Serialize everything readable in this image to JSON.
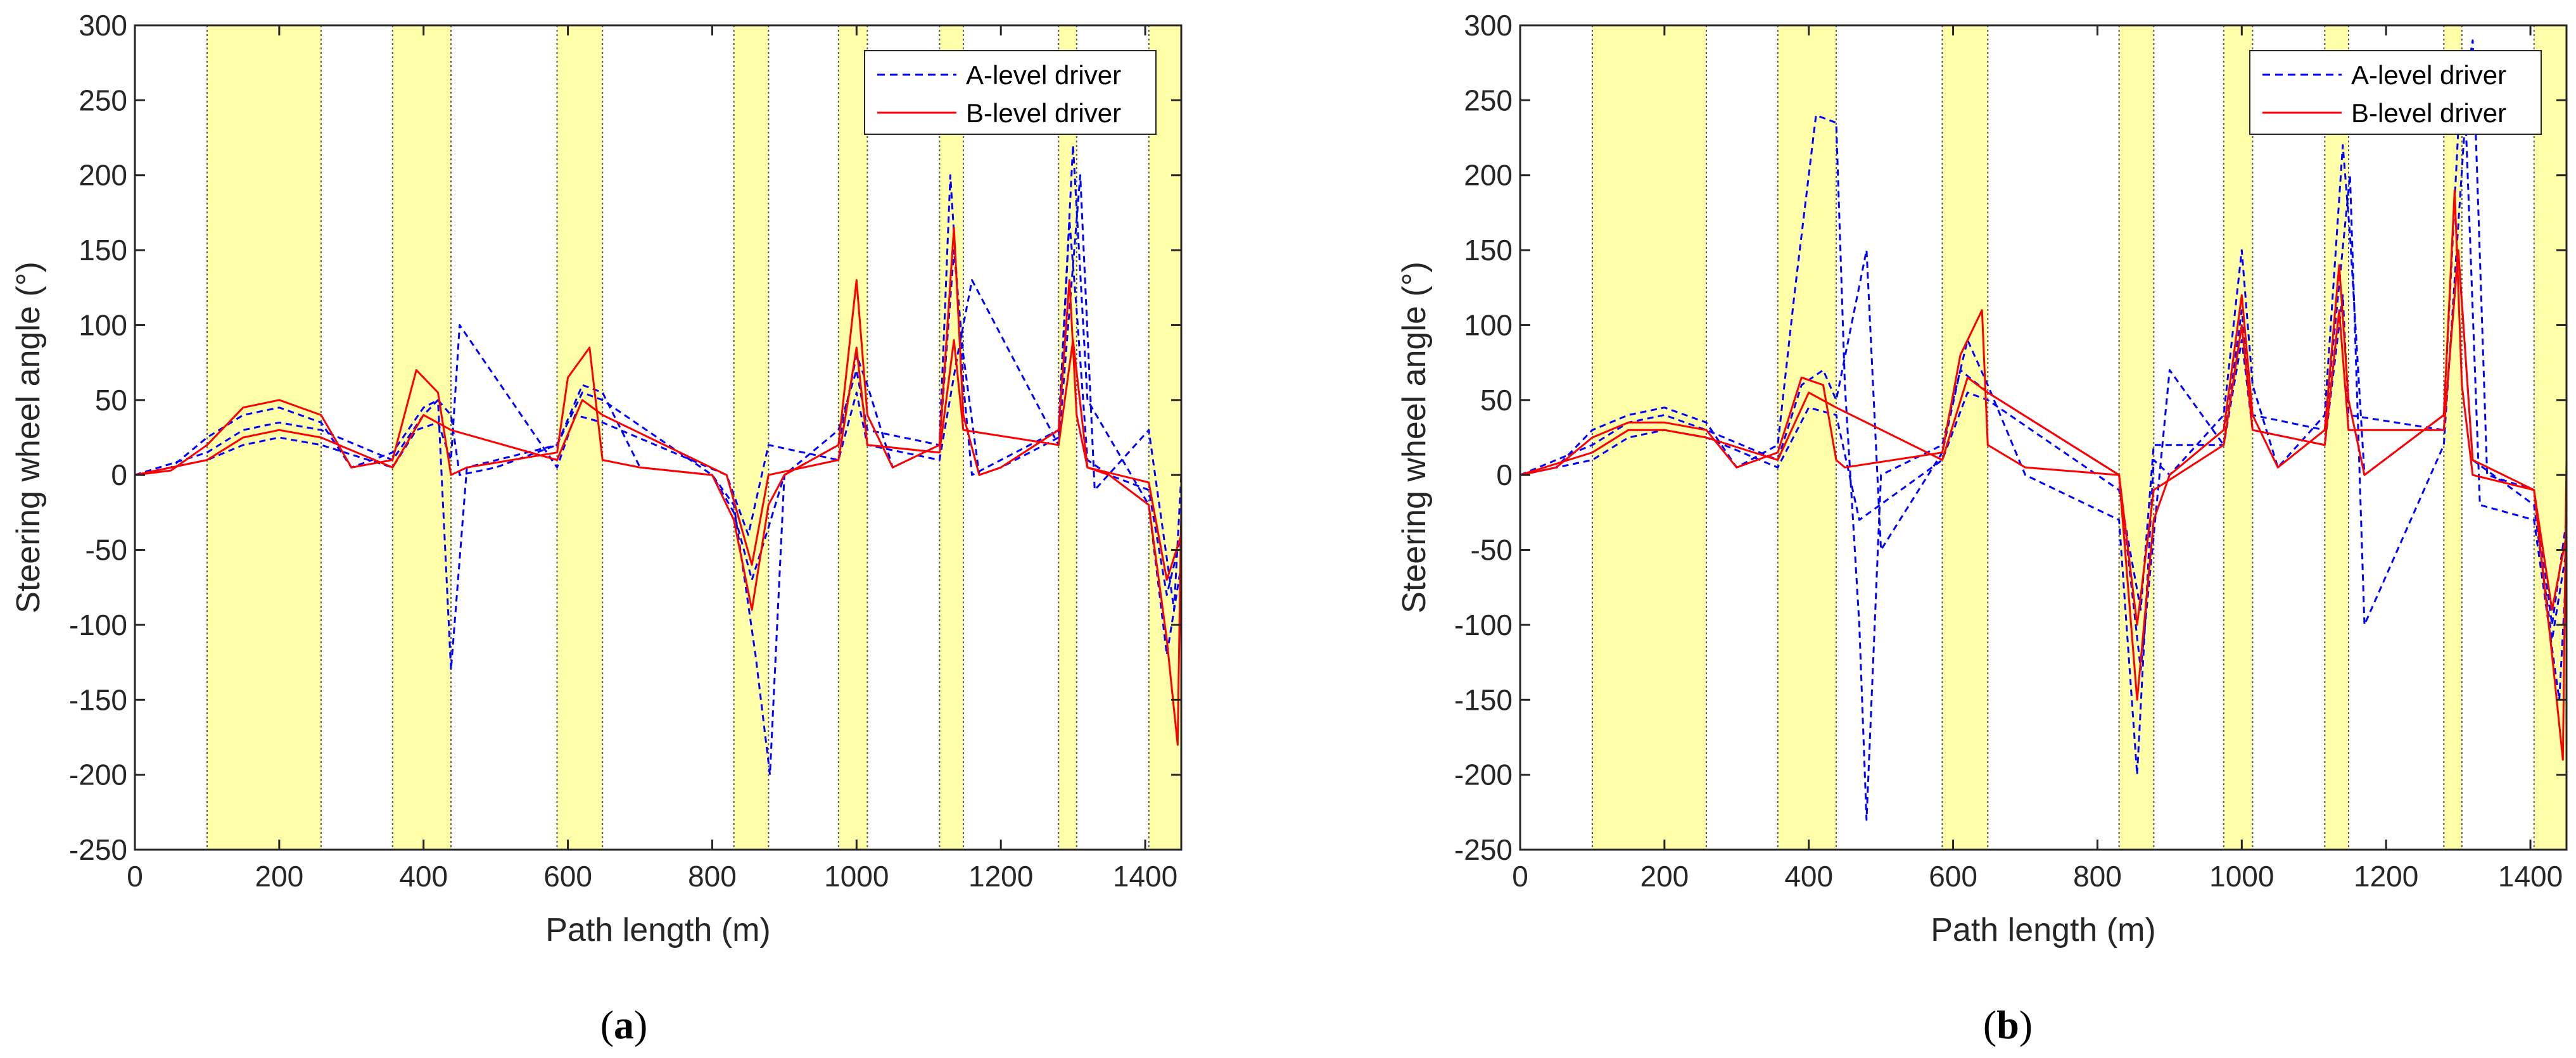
{
  "chart_data": [
    {
      "type": "line",
      "panel_label": "a",
      "xlabel": "Path length (m)",
      "ylabel": "Steering wheel angle (°)",
      "xlim": [
        0,
        1450
      ],
      "ylim": [
        -250,
        300
      ],
      "x_ticks": [
        0,
        200,
        400,
        600,
        800,
        1000,
        1200,
        1400
      ],
      "y_ticks": [
        -250,
        -200,
        -150,
        -100,
        -50,
        0,
        50,
        100,
        150,
        200,
        250,
        300
      ],
      "legend": {
        "position": "top-right",
        "entries": [
          "A-level driver",
          "B-level driver"
        ]
      },
      "shaded_regions": [
        [
          100,
          258
        ],
        [
          357,
          438
        ],
        [
          585,
          648
        ],
        [
          830,
          878
        ],
        [
          975,
          1015
        ],
        [
          1115,
          1148
        ],
        [
          1280,
          1305
        ],
        [
          1405,
          1450
        ]
      ],
      "colors": {
        "A-level driver": "#0000ff",
        "B-level driver": "#ff0000",
        "shade": "#ffffaa"
      },
      "series": [
        {
          "name": "A-level driver",
          "style": "dashed",
          "x": [
            0,
            50,
            100,
            150,
            200,
            258,
            300,
            357,
            400,
            420,
            438,
            450,
            500,
            585,
            620,
            648,
            700,
            800,
            830,
            855,
            878,
            900,
            975,
            1000,
            1015,
            1050,
            1115,
            1135,
            1148,
            1170,
            1200,
            1280,
            1295,
            1305,
            1320,
            1350,
            1405,
            1430,
            1450
          ],
          "values": [
            0,
            5,
            25,
            40,
            45,
            35,
            5,
            15,
            45,
            50,
            40,
            0,
            5,
            20,
            60,
            55,
            5,
            0,
            -25,
            -70,
            -35,
            0,
            20,
            80,
            60,
            5,
            20,
            150,
            80,
            0,
            5,
            25,
            170,
            110,
            10,
            0,
            -10,
            -80,
            -40
          ]
        },
        {
          "name": "A-level driver",
          "style": "dashed",
          "x": [
            0,
            100,
            150,
            200,
            258,
            357,
            400,
            420,
            438,
            460,
            585,
            620,
            648,
            800,
            830,
            860,
            880,
            900,
            975,
            1000,
            1015,
            1115,
            1130,
            1148,
            1160,
            1280,
            1300,
            1320,
            1405,
            1430,
            1450
          ],
          "values": [
            0,
            15,
            30,
            35,
            30,
            10,
            40,
            50,
            -130,
            5,
            20,
            55,
            50,
            0,
            -20,
            -120,
            -200,
            0,
            30,
            70,
            30,
            20,
            200,
            60,
            0,
            30,
            220,
            50,
            -20,
            -120,
            -60
          ]
        },
        {
          "name": "A-level driver",
          "style": "dashed",
          "x": [
            0,
            100,
            150,
            200,
            258,
            357,
            390,
            420,
            438,
            450,
            585,
            610,
            648,
            820,
            850,
            878,
            975,
            1000,
            1015,
            1115,
            1140,
            1160,
            1280,
            1310,
            1330,
            1405,
            1440,
            1450
          ],
          "values": [
            0,
            10,
            20,
            25,
            20,
            5,
            30,
            35,
            10,
            100,
            5,
            40,
            35,
            0,
            -40,
            20,
            10,
            55,
            20,
            10,
            80,
            130,
            20,
            200,
            -10,
            30,
            -90,
            0
          ]
        },
        {
          "name": "B-level driver",
          "style": "solid",
          "x": [
            0,
            50,
            100,
            150,
            200,
            258,
            300,
            357,
            390,
            420,
            438,
            460,
            585,
            600,
            630,
            648,
            700,
            800,
            830,
            855,
            878,
            900,
            975,
            1000,
            1015,
            1050,
            1115,
            1135,
            1148,
            1170,
            1200,
            1280,
            1295,
            1305,
            1320,
            1350,
            1405,
            1430,
            1445,
            1450
          ],
          "values": [
            0,
            3,
            20,
            45,
            50,
            40,
            5,
            10,
            70,
            55,
            0,
            5,
            15,
            65,
            85,
            10,
            5,
            0,
            -30,
            -90,
            -20,
            0,
            20,
            130,
            40,
            5,
            20,
            165,
            40,
            0,
            5,
            30,
            130,
            40,
            5,
            0,
            -20,
            -110,
            -180,
            -20
          ]
        },
        {
          "name": "B-level driver",
          "style": "solid",
          "x": [
            0,
            100,
            150,
            200,
            258,
            357,
            400,
            438,
            585,
            620,
            648,
            820,
            855,
            878,
            975,
            1000,
            1015,
            1115,
            1135,
            1148,
            1280,
            1300,
            1320,
            1405,
            1430,
            1450
          ],
          "values": [
            0,
            10,
            25,
            30,
            25,
            5,
            40,
            30,
            10,
            50,
            40,
            0,
            -60,
            0,
            10,
            85,
            20,
            15,
            90,
            30,
            20,
            90,
            5,
            -5,
            -70,
            -40
          ]
        }
      ]
    },
    {
      "type": "line",
      "panel_label": "b",
      "xlabel": "Path length (m)",
      "ylabel": "Steering wheel angle (°)",
      "xlim": [
        0,
        1450
      ],
      "ylim": [
        -250,
        300
      ],
      "x_ticks": [
        0,
        200,
        400,
        600,
        800,
        1000,
        1200,
        1400
      ],
      "y_ticks": [
        -250,
        -200,
        -150,
        -100,
        -50,
        0,
        50,
        100,
        150,
        200,
        250,
        300
      ],
      "legend": {
        "position": "top-right",
        "entries": [
          "A-level driver",
          "B-level driver"
        ]
      },
      "shaded_regions": [
        [
          100,
          258
        ],
        [
          357,
          438
        ],
        [
          585,
          648
        ],
        [
          830,
          878
        ],
        [
          975,
          1015
        ],
        [
          1115,
          1148
        ],
        [
          1280,
          1305
        ],
        [
          1405,
          1450
        ]
      ],
      "colors": {
        "A-level driver": "#0000ff",
        "B-level driver": "#ff0000",
        "shade": "#ffffaa"
      },
      "series": [
        {
          "name": "A-level driver",
          "style": "dashed",
          "x": [
            0,
            50,
            100,
            150,
            200,
            258,
            300,
            357,
            380,
            410,
            438,
            450,
            470,
            480,
            500,
            585,
            620,
            648,
            700,
            830,
            855,
            878,
            900,
            975,
            1000,
            1015,
            1050,
            1115,
            1140,
            1150,
            1170,
            1280,
            1300,
            1320,
            1340,
            1405,
            1430,
            1450
          ],
          "values": [
            0,
            5,
            30,
            40,
            45,
            35,
            5,
            20,
            120,
            240,
            235,
            60,
            -100,
            -230,
            0,
            20,
            90,
            60,
            0,
            -30,
            -200,
            10,
            0,
            40,
            150,
            60,
            5,
            40,
            220,
            160,
            0,
            40,
            230,
            290,
            0,
            -10,
            -100,
            -30
          ]
        },
        {
          "name": "A-level driver",
          "style": "dashed",
          "x": [
            0,
            100,
            150,
            200,
            258,
            357,
            390,
            420,
            438,
            480,
            500,
            585,
            610,
            648,
            830,
            860,
            878,
            900,
            975,
            1000,
            1015,
            1115,
            1150,
            1170,
            1280,
            1310,
            1330,
            1405,
            1440,
            1450
          ],
          "values": [
            0,
            20,
            35,
            40,
            30,
            10,
            60,
            70,
            50,
            150,
            -50,
            15,
            70,
            55,
            0,
            -130,
            -40,
            70,
            20,
            110,
            40,
            30,
            200,
            -100,
            20,
            240,
            -20,
            -30,
            -150,
            -60
          ]
        },
        {
          "name": "A-level driver",
          "style": "dashed",
          "x": [
            0,
            100,
            150,
            200,
            258,
            357,
            400,
            438,
            470,
            585,
            620,
            648,
            830,
            860,
            878,
            975,
            1000,
            1015,
            1115,
            1140,
            1148,
            1280,
            1300,
            1320,
            1405,
            1430,
            1450
          ],
          "values": [
            0,
            10,
            25,
            30,
            25,
            5,
            45,
            40,
            -30,
            10,
            55,
            50,
            -10,
            -90,
            20,
            20,
            90,
            30,
            20,
            120,
            40,
            30,
            150,
            10,
            -20,
            -110,
            -50
          ]
        },
        {
          "name": "B-level driver",
          "style": "solid",
          "x": [
            0,
            50,
            100,
            150,
            200,
            258,
            300,
            357,
            390,
            420,
            438,
            450,
            585,
            610,
            640,
            648,
            700,
            830,
            855,
            878,
            900,
            975,
            1000,
            1015,
            1050,
            1115,
            1135,
            1148,
            1170,
            1280,
            1295,
            1305,
            1320,
            1405,
            1430,
            1445,
            1450
          ],
          "values": [
            0,
            5,
            25,
            35,
            35,
            30,
            5,
            15,
            65,
            60,
            10,
            5,
            15,
            80,
            110,
            20,
            5,
            0,
            -150,
            -30,
            0,
            30,
            120,
            40,
            5,
            30,
            140,
            50,
            0,
            40,
            190,
            60,
            0,
            -10,
            -120,
            -190,
            10
          ]
        },
        {
          "name": "B-level driver",
          "style": "solid",
          "x": [
            0,
            100,
            150,
            200,
            258,
            357,
            400,
            438,
            585,
            620,
            648,
            830,
            855,
            878,
            975,
            1000,
            1015,
            1115,
            1135,
            1148,
            1280,
            1300,
            1320,
            1405,
            1430,
            1450
          ],
          "values": [
            0,
            15,
            30,
            30,
            25,
            10,
            55,
            45,
            10,
            65,
            55,
            0,
            -100,
            -10,
            20,
            100,
            30,
            20,
            110,
            30,
            30,
            150,
            10,
            -10,
            -90,
            -40
          ]
        }
      ]
    }
  ]
}
